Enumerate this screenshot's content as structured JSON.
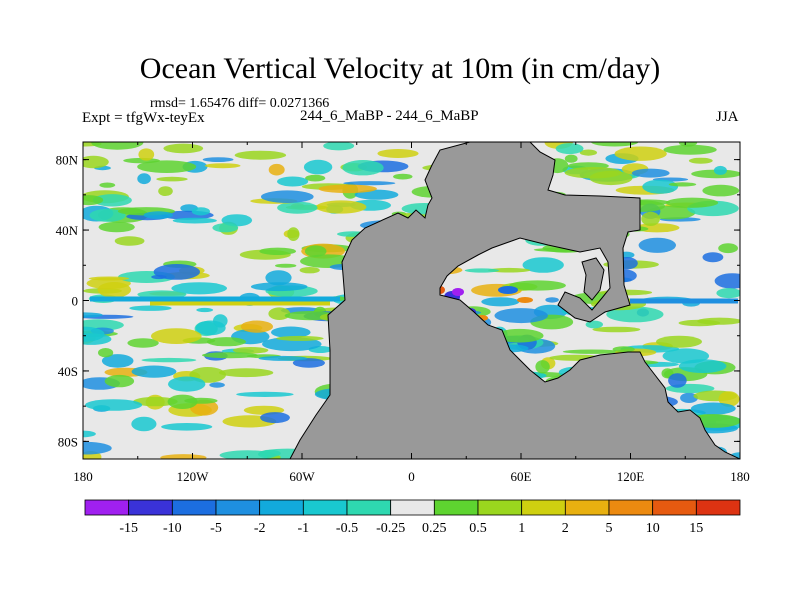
{
  "chart_data": {
    "type": "heatmap",
    "title": "Ocean Vertical Velocity at 10m (in cm/day)",
    "stats_line": "rmsd= 1.65476 diff= 0.0271366",
    "left_label": "Expt = tfgWx-teyEx",
    "center_label": "244_6_MaBP - 244_6_MaBP",
    "right_label": "JJA",
    "y_ticks": [
      "80N",
      "40N",
      "0",
      "40S",
      "80S"
    ],
    "x_ticks": [
      "180",
      "120W",
      "60W",
      "0",
      "60E",
      "120E",
      "180"
    ],
    "x_range": [
      -180,
      180
    ],
    "y_range": [
      -90,
      90
    ],
    "land_color": "#999999",
    "colorbar": {
      "labels": [
        "-15",
        "-10",
        "-5",
        "-2",
        "-1",
        "-0.5",
        "-0.25",
        "0.25",
        "0.5",
        "1",
        "2",
        "5",
        "10",
        "15"
      ],
      "colors": [
        "#a020f0",
        "#3a32d8",
        "#1c6ee0",
        "#1e8fe0",
        "#12aadc",
        "#19c8d0",
        "#2ed8b0",
        "#e8e8e8",
        "#5ed430",
        "#9ad61e",
        "#cfd010",
        "#e8b010",
        "#ec8a10",
        "#e65a10",
        "#dd3312"
      ]
    }
  }
}
